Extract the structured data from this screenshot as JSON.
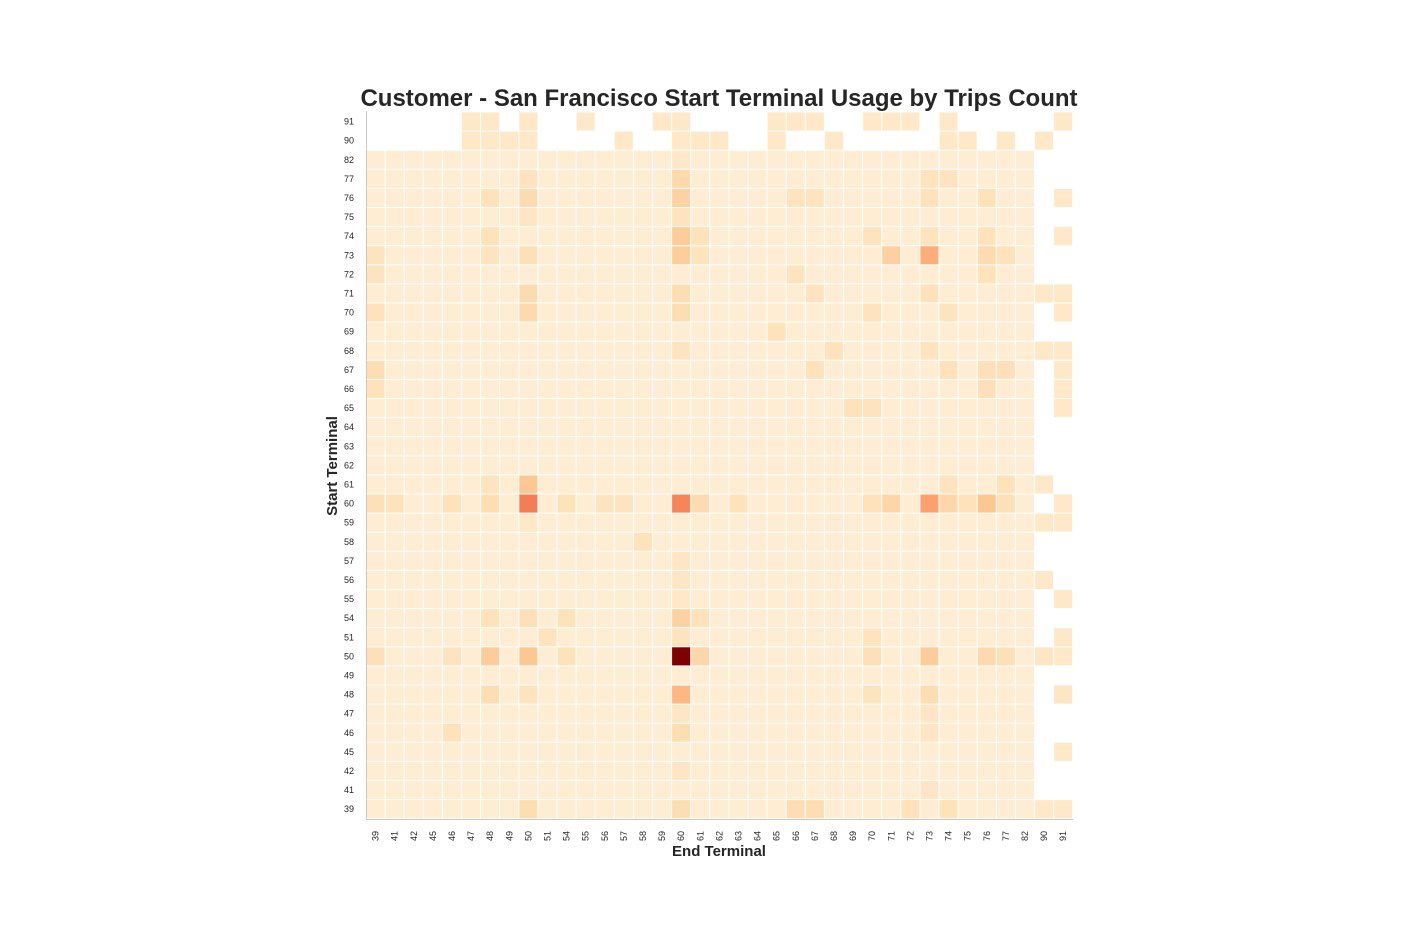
{
  "chart_data": {
    "type": "heatmap",
    "title": "Customer - San Francisco Start Terminal Usage by Trips Count",
    "xlabel": "End Terminal",
    "ylabel": "Start Terminal",
    "x_categories": [
      "39",
      "41",
      "42",
      "45",
      "46",
      "47",
      "48",
      "49",
      "50",
      "51",
      "54",
      "55",
      "56",
      "57",
      "58",
      "59",
      "60",
      "61",
      "62",
      "63",
      "64",
      "65",
      "66",
      "67",
      "68",
      "69",
      "70",
      "71",
      "72",
      "73",
      "74",
      "75",
      "76",
      "77",
      "82",
      "90",
      "91"
    ],
    "y_categories": [
      "91",
      "90",
      "82",
      "77",
      "76",
      "75",
      "74",
      "73",
      "72",
      "71",
      "70",
      "69",
      "68",
      "67",
      "66",
      "65",
      "64",
      "63",
      "62",
      "61",
      "60",
      "59",
      "58",
      "57",
      "56",
      "55",
      "54",
      "51",
      "50",
      "49",
      "48",
      "47",
      "46",
      "45",
      "42",
      "41",
      "39"
    ],
    "color_scale": {
      "colormap": "OrRd",
      "low": "#fff3e0",
      "high": "#7f0000",
      "missing": "#ffffff"
    },
    "grid": false,
    "value_scale": "relative intensity 0-1 (no colorbar shown)",
    "default_value_full_rows": 0.03,
    "default_value_sparse_rows": 0.05,
    "sparse_rows": {
      "91": [
        "47",
        "48",
        "50",
        "55",
        "59",
        "60",
        "65",
        "66",
        "67",
        "70",
        "71",
        "72",
        "74",
        "91"
      ],
      "90": [
        "47",
        "48",
        "49",
        "50",
        "57",
        "60",
        "61",
        "62",
        "65",
        "68",
        "74",
        "75",
        "77",
        "90"
      ]
    },
    "row_extra_columns": {
      "77": [],
      "76": [
        "91"
      ],
      "75": [],
      "74": [
        "91"
      ],
      "73": [],
      "72": [],
      "71": [
        "90",
        "91"
      ],
      "70": [
        "91"
      ],
      "69": [],
      "68": [
        "90",
        "91"
      ],
      "67": [
        "91"
      ],
      "66": [
        "91"
      ],
      "65": [
        "91"
      ],
      "64": [],
      "63": [],
      "62": [],
      "61": [
        "90"
      ],
      "60": [
        "91"
      ],
      "59": [
        "90",
        "91"
      ],
      "58": [],
      "57": [],
      "56": [
        "90"
      ],
      "55": [
        "91"
      ],
      "54": [],
      "51": [
        "91"
      ],
      "50": [
        "90",
        "91"
      ],
      "49": [],
      "48": [
        "91"
      ],
      "47": [],
      "46": [],
      "45": [
        "91"
      ],
      "42": [],
      "41": [],
      "39": [
        "90",
        "91"
      ],
      "82": []
    },
    "highlighted_values": [
      {
        "start": "50",
        "end": "60",
        "value": 1.0
      },
      {
        "start": "60",
        "end": "50",
        "value": 0.45
      },
      {
        "start": "60",
        "end": "60",
        "value": 0.42
      },
      {
        "start": "60",
        "end": "73",
        "value": 0.32
      },
      {
        "start": "73",
        "end": "73",
        "value": 0.28
      },
      {
        "start": "48",
        "end": "60",
        "value": 0.25
      },
      {
        "start": "61",
        "end": "50",
        "value": 0.2
      },
      {
        "start": "60",
        "end": "76",
        "value": 0.2
      },
      {
        "start": "50",
        "end": "50",
        "value": 0.2
      },
      {
        "start": "50",
        "end": "48",
        "value": 0.18
      },
      {
        "start": "50",
        "end": "73",
        "value": 0.18
      },
      {
        "start": "74",
        "end": "60",
        "value": 0.18
      },
      {
        "start": "73",
        "end": "60",
        "value": 0.17
      },
      {
        "start": "73",
        "end": "71",
        "value": 0.16
      },
      {
        "start": "54",
        "end": "60",
        "value": 0.15
      },
      {
        "start": "76",
        "end": "60",
        "value": 0.15
      },
      {
        "start": "60",
        "end": "71",
        "value": 0.14
      },
      {
        "start": "60",
        "end": "74",
        "value": 0.13
      },
      {
        "start": "50",
        "end": "61",
        "value": 0.13
      },
      {
        "start": "50",
        "end": "76",
        "value": 0.12
      },
      {
        "start": "77",
        "end": "60",
        "value": 0.12
      },
      {
        "start": "70",
        "end": "50",
        "value": 0.12
      },
      {
        "start": "71",
        "end": "50",
        "value": 0.11
      },
      {
        "start": "71",
        "end": "60",
        "value": 0.1
      },
      {
        "start": "70",
        "end": "60",
        "value": 0.1
      },
      {
        "start": "73",
        "end": "76",
        "value": 0.11
      },
      {
        "start": "76",
        "end": "50",
        "value": 0.11
      },
      {
        "start": "60",
        "end": "61",
        "value": 0.11
      },
      {
        "start": "60",
        "end": "48",
        "value": 0.1
      },
      {
        "start": "60",
        "end": "39",
        "value": 0.09
      },
      {
        "start": "60",
        "end": "77",
        "value": 0.09
      },
      {
        "start": "46",
        "end": "60",
        "value": 0.1
      },
      {
        "start": "48",
        "end": "48",
        "value": 0.1
      },
      {
        "start": "48",
        "end": "73",
        "value": 0.1
      },
      {
        "start": "39",
        "end": "50",
        "value": 0.1
      },
      {
        "start": "39",
        "end": "60",
        "value": 0.1
      },
      {
        "start": "39",
        "end": "66",
        "value": 0.1
      },
      {
        "start": "39",
        "end": "67",
        "value": 0.1
      },
      {
        "start": "50",
        "end": "39",
        "value": 0.09
      },
      {
        "start": "50",
        "end": "70",
        "value": 0.09
      },
      {
        "start": "50",
        "end": "77",
        "value": 0.09
      },
      {
        "start": "54",
        "end": "50",
        "value": 0.09
      },
      {
        "start": "54",
        "end": "48",
        "value": 0.08
      },
      {
        "start": "54",
        "end": "54",
        "value": 0.08
      },
      {
        "start": "54",
        "end": "61",
        "value": 0.08
      },
      {
        "start": "76",
        "end": "48",
        "value": 0.08
      },
      {
        "start": "76",
        "end": "73",
        "value": 0.08
      },
      {
        "start": "76",
        "end": "76",
        "value": 0.08
      },
      {
        "start": "76",
        "end": "66",
        "value": 0.07
      },
      {
        "start": "76",
        "end": "67",
        "value": 0.07
      },
      {
        "start": "74",
        "end": "48",
        "value": 0.08
      },
      {
        "start": "74",
        "end": "61",
        "value": 0.08
      },
      {
        "start": "74",
        "end": "76",
        "value": 0.08
      },
      {
        "start": "74",
        "end": "70",
        "value": 0.07
      },
      {
        "start": "74",
        "end": "73",
        "value": 0.07
      },
      {
        "start": "73",
        "end": "50",
        "value": 0.09
      },
      {
        "start": "73",
        "end": "77",
        "value": 0.08
      },
      {
        "start": "73",
        "end": "48",
        "value": 0.07
      },
      {
        "start": "73",
        "end": "39",
        "value": 0.07
      },
      {
        "start": "73",
        "end": "61",
        "value": 0.07
      },
      {
        "start": "72",
        "end": "76",
        "value": 0.08
      },
      {
        "start": "72",
        "end": "66",
        "value": 0.07
      },
      {
        "start": "72",
        "end": "39",
        "value": 0.07
      },
      {
        "start": "71",
        "end": "67",
        "value": 0.07
      },
      {
        "start": "71",
        "end": "73",
        "value": 0.08
      },
      {
        "start": "70",
        "end": "39",
        "value": 0.08
      },
      {
        "start": "70",
        "end": "74",
        "value": 0.07
      },
      {
        "start": "70",
        "end": "70",
        "value": 0.07
      },
      {
        "start": "68",
        "end": "68",
        "value": 0.08
      },
      {
        "start": "68",
        "end": "73",
        "value": 0.07
      },
      {
        "start": "68",
        "end": "60",
        "value": 0.07
      },
      {
        "start": "67",
        "end": "39",
        "value": 0.1
      },
      {
        "start": "67",
        "end": "76",
        "value": 0.09
      },
      {
        "start": "67",
        "end": "77",
        "value": 0.09
      },
      {
        "start": "67",
        "end": "67",
        "value": 0.08
      },
      {
        "start": "67",
        "end": "74",
        "value": 0.08
      },
      {
        "start": "66",
        "end": "39",
        "value": 0.08
      },
      {
        "start": "66",
        "end": "76",
        "value": 0.09
      },
      {
        "start": "65",
        "end": "69",
        "value": 0.08
      },
      {
        "start": "65",
        "end": "70",
        "value": 0.07
      },
      {
        "start": "69",
        "end": "65",
        "value": 0.08
      },
      {
        "start": "61",
        "end": "48",
        "value": 0.07
      },
      {
        "start": "61",
        "end": "77",
        "value": 0.08
      },
      {
        "start": "61",
        "end": "74",
        "value": 0.07
      },
      {
        "start": "60",
        "end": "54",
        "value": 0.08
      },
      {
        "start": "60",
        "end": "46",
        "value": 0.08
      },
      {
        "start": "60",
        "end": "41",
        "value": 0.08
      },
      {
        "start": "60",
        "end": "63",
        "value": 0.08
      },
      {
        "start": "60",
        "end": "56",
        "value": 0.07
      },
      {
        "start": "60",
        "end": "57",
        "value": 0.07
      },
      {
        "start": "60",
        "end": "70",
        "value": 0.08
      },
      {
        "start": "60",
        "end": "75",
        "value": 0.08
      },
      {
        "start": "58",
        "end": "58",
        "value": 0.08
      },
      {
        "start": "57",
        "end": "60",
        "value": 0.06
      },
      {
        "start": "56",
        "end": "60",
        "value": 0.06
      },
      {
        "start": "51",
        "end": "51",
        "value": 0.07
      },
      {
        "start": "51",
        "end": "60",
        "value": 0.07
      },
      {
        "start": "51",
        "end": "70",
        "value": 0.07
      },
      {
        "start": "50",
        "end": "54",
        "value": 0.08
      },
      {
        "start": "50",
        "end": "46",
        "value": 0.07
      },
      {
        "start": "50",
        "end": "90",
        "value": 0.06
      },
      {
        "start": "48",
        "end": "50",
        "value": 0.07
      },
      {
        "start": "48",
        "end": "70",
        "value": 0.07
      },
      {
        "start": "48",
        "end": "91",
        "value": 0.06
      },
      {
        "start": "47",
        "end": "60",
        "value": 0.06
      },
      {
        "start": "47",
        "end": "73",
        "value": 0.06
      },
      {
        "start": "46",
        "end": "46",
        "value": 0.08
      },
      {
        "start": "46",
        "end": "73",
        "value": 0.06
      },
      {
        "start": "42",
        "end": "60",
        "value": 0.06
      },
      {
        "start": "41",
        "end": "73",
        "value": 0.06
      },
      {
        "start": "39",
        "end": "72",
        "value": 0.08
      },
      {
        "start": "39",
        "end": "74",
        "value": 0.08
      },
      {
        "start": "77",
        "end": "50",
        "value": 0.07
      },
      {
        "start": "77",
        "end": "73",
        "value": 0.07
      },
      {
        "start": "77",
        "end": "74",
        "value": 0.07
      },
      {
        "start": "75",
        "end": "50",
        "value": 0.06
      },
      {
        "start": "75",
        "end": "60",
        "value": 0.07
      },
      {
        "start": "82",
        "end": "60",
        "value": 0.05
      },
      {
        "start": "55",
        "end": "60",
        "value": 0.05
      },
      {
        "start": "59",
        "end": "50",
        "value": 0.05
      }
    ]
  }
}
